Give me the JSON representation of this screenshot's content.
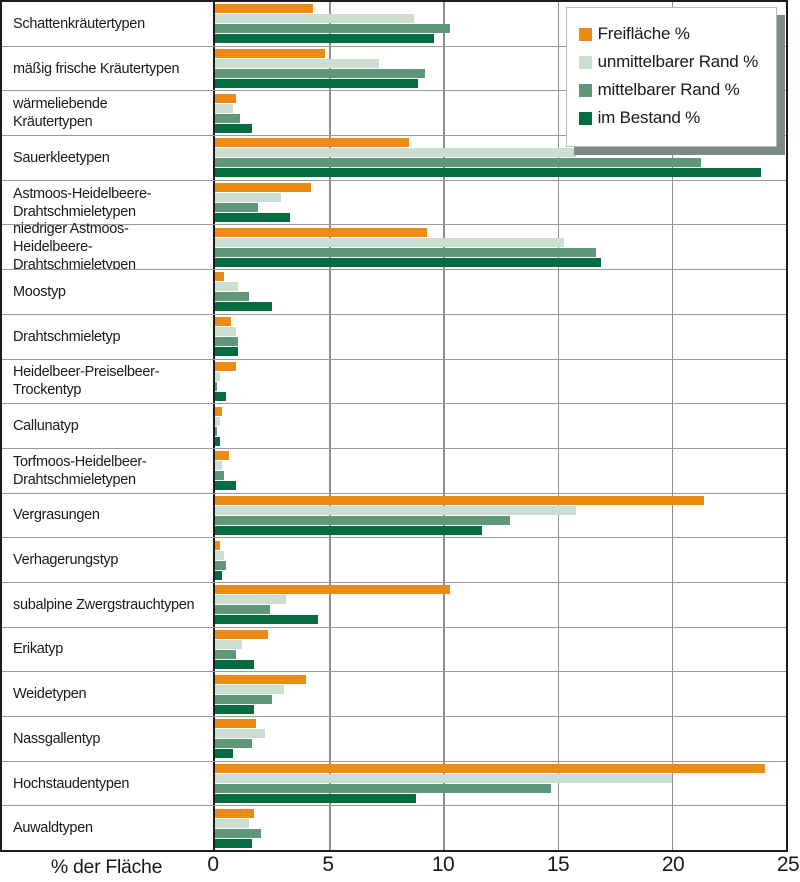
{
  "chart_data": {
    "type": "bar",
    "orientation": "horizontal",
    "title": "",
    "xlabel": "% der Fläche",
    "ylabel": "",
    "xlim": [
      0,
      25
    ],
    "x_ticks": [
      0,
      5,
      10,
      15,
      20,
      25
    ],
    "grid": true,
    "legend_position": "top-right",
    "categories": [
      "Schattenkräutertypen",
      "mäßig frische Kräutertypen",
      "wärmeliebende\nKräutertypen",
      "Sauerkleetypen",
      "Astmoos-Heidelbeere-\nDrahtschmieletypen",
      "niedriger Astmoos-\nHeidelbeere-Drahtschmieletypen",
      "Moostyp",
      "Drahtschmieletyp",
      "Heidelbeer-Preiselbeer-\nTrockentyp",
      "Callunatyp",
      "Torfmoos-Heidelbeer-\nDrahtschmieletypen",
      "Vergrasungen",
      "Verhagerungstyp",
      "subalpine Zwergstrauchtypen",
      "Erikatyp",
      "Weidetypen",
      "Nassgallentyp",
      "Hochstaudentypen",
      "Auwaldtypen"
    ],
    "series": [
      {
        "name": "Freifläche %",
        "color": "#EC8B13",
        "values": [
          4.3,
          4.8,
          0.9,
          8.5,
          4.2,
          9.3,
          0.4,
          0.7,
          0.9,
          0.3,
          0.6,
          21.4,
          0.2,
          10.3,
          2.3,
          4.0,
          1.8,
          24.1,
          1.7
        ]
      },
      {
        "name": "unmittelbarer Rand %",
        "color": "#CCDDD1",
        "values": [
          8.7,
          7.2,
          0.8,
          15.8,
          2.9,
          15.3,
          1.0,
          0.9,
          0.2,
          0.2,
          0.3,
          15.8,
          0.4,
          3.1,
          1.2,
          3.0,
          2.2,
          20.0,
          1.5
        ]
      },
      {
        "name": "mittelbarer Rand %",
        "color": "#5F9879",
        "values": [
          10.3,
          9.2,
          1.1,
          21.3,
          1.9,
          16.7,
          1.5,
          1.0,
          0.1,
          0.1,
          0.4,
          12.9,
          0.5,
          2.4,
          0.9,
          2.5,
          1.6,
          14.7,
          2.0
        ]
      },
      {
        "name": "im Bestand %",
        "color": "#056B41",
        "values": [
          9.6,
          8.9,
          1.6,
          23.9,
          3.3,
          16.9,
          2.5,
          1.0,
          0.5,
          0.2,
          0.9,
          11.7,
          0.3,
          4.5,
          1.7,
          1.7,
          0.8,
          8.8,
          1.6
        ]
      }
    ]
  }
}
